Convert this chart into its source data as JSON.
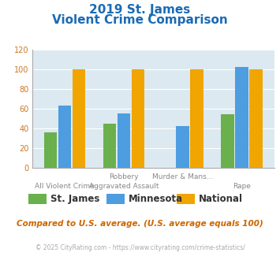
{
  "title_line1": "2019 St. James",
  "title_line2": "Violent Crime Comparison",
  "groups": [
    "St. James",
    "Minnesota",
    "National"
  ],
  "colors": [
    "#6ab04c",
    "#4d9de0",
    "#f0a500"
  ],
  "values": [
    [
      36,
      63,
      100
    ],
    [
      45,
      55,
      100
    ],
    [
      0,
      42,
      100
    ],
    [
      54,
      102,
      100
    ]
  ],
  "x_labels_top": [
    "",
    "Robbery",
    "Murder & Mans...",
    ""
  ],
  "x_labels_bottom": [
    "All Violent Crime",
    "Aggravated Assault",
    "",
    "Rape"
  ],
  "ylim": [
    0,
    120
  ],
  "yticks": [
    0,
    20,
    40,
    60,
    80,
    100,
    120
  ],
  "bg_color": "#dce9f0",
  "title_color": "#1a6bb5",
  "xlabel_color": "#888888",
  "ytick_color": "#cc7722",
  "footer_text": "Compared to U.S. average. (U.S. average equals 100)",
  "credit_text": "© 2025 CityRating.com - https://www.cityrating.com/crime-statistics/",
  "footer_color": "#cc6600",
  "credit_color": "#aaaaaa"
}
